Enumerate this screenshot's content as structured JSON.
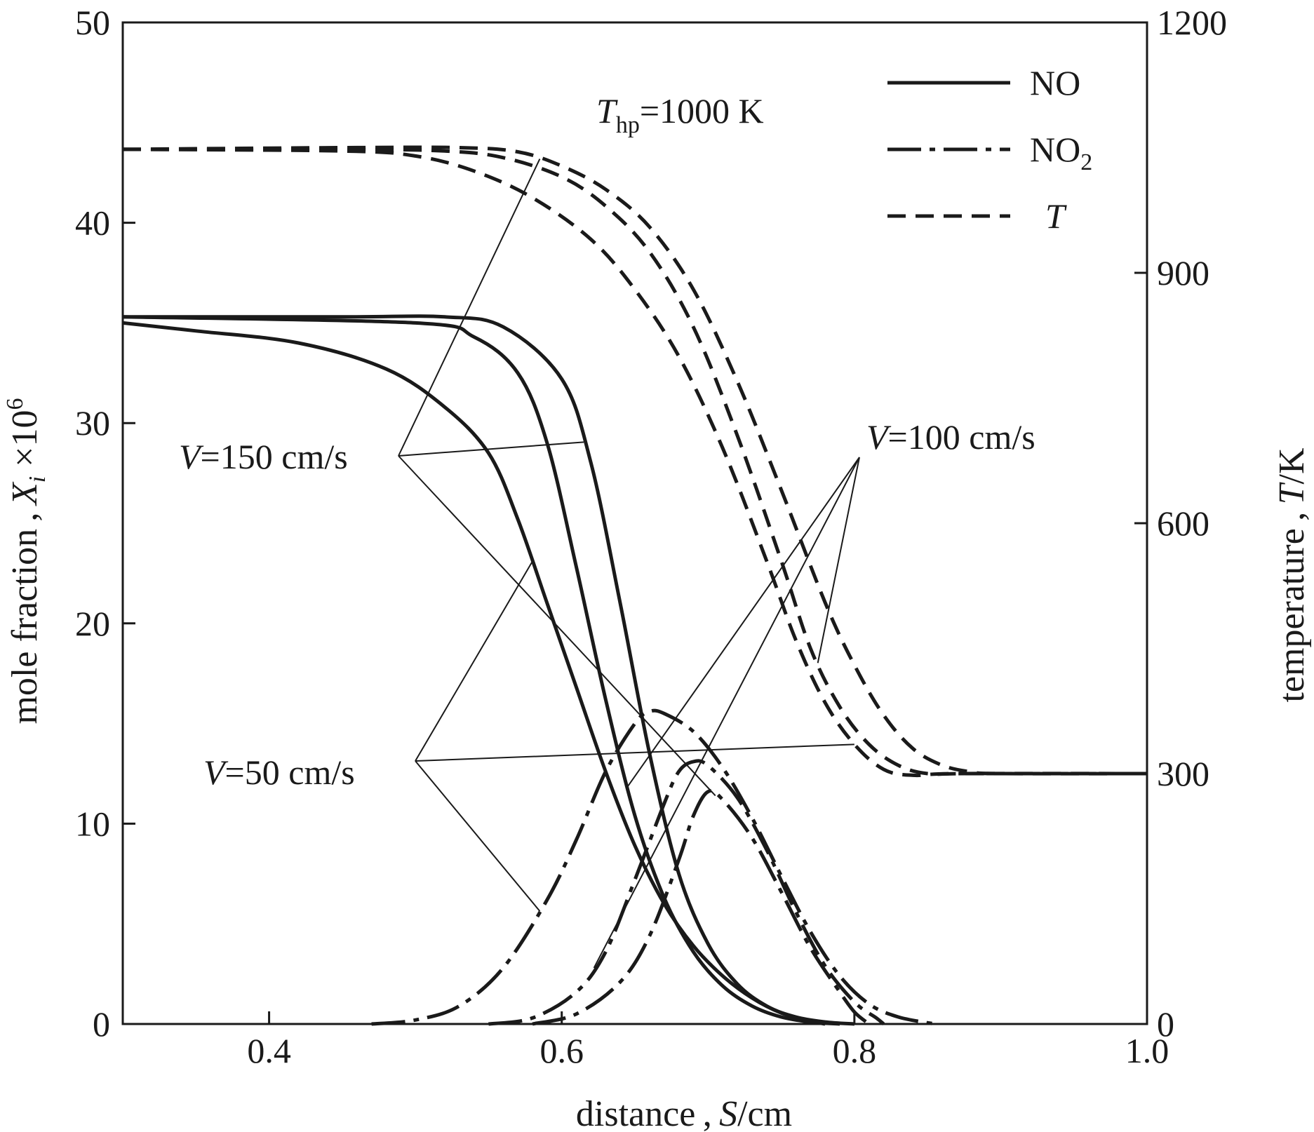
{
  "chart_data": {
    "type": "line",
    "x_axis": {
      "label_prefix": "distance , ",
      "label_var": "S",
      "label_unit": "/cm",
      "range": [
        0.3,
        1.0
      ],
      "ticks": [
        0.4,
        0.6,
        0.8,
        1.0
      ],
      "tick_labels": [
        "0.4",
        "0.6",
        "0.8",
        "1.0"
      ]
    },
    "y_left": {
      "label_prefix": "mole fraction , ",
      "label_var": "X",
      "label_sub": "i",
      "label_suffix": " ×10",
      "label_sup": "6",
      "range": [
        0,
        50
      ],
      "ticks": [
        0,
        10,
        20,
        30,
        40,
        50
      ],
      "tick_labels": [
        "0",
        "10",
        "20",
        "30",
        "40",
        "50"
      ]
    },
    "y_right": {
      "label_prefix": "temperature , ",
      "label_var": "T",
      "label_unit": "/K",
      "range": [
        0,
        1200
      ],
      "ticks": [
        0,
        300,
        600,
        900,
        1200
      ],
      "tick_labels": [
        "0",
        "300",
        "600",
        "900",
        "1200"
      ]
    },
    "legend": {
      "placement": "top-right",
      "entries": [
        {
          "label": "NO",
          "style": "solid"
        },
        {
          "label": "NO",
          "sub": "2",
          "style": "dashdot"
        },
        {
          "label": "T",
          "italic": true,
          "style": "dashed"
        }
      ]
    },
    "parameter_label": {
      "var": "T",
      "sub": "hp",
      "value": "=1000 K"
    },
    "annotations": [
      {
        "var": "V",
        "text": "=150 cm/s"
      },
      {
        "var": "V",
        "text": "=100 cm/s"
      },
      {
        "var": "V",
        "text": "=50 cm/s"
      }
    ],
    "series": [
      {
        "species": "NO",
        "velocity": "V=150 cm/s",
        "style": "solid",
        "axis": "left",
        "points": [
          [
            0.3,
            35.3
          ],
          [
            0.45,
            35.3
          ],
          [
            0.52,
            35.3
          ],
          [
            0.56,
            34.8
          ],
          [
            0.6,
            32.2
          ],
          [
            0.62,
            28.0
          ],
          [
            0.64,
            21.0
          ],
          [
            0.66,
            13.5
          ],
          [
            0.68,
            7.5
          ],
          [
            0.7,
            4.0
          ],
          [
            0.72,
            2.0
          ],
          [
            0.74,
            0.9
          ],
          [
            0.76,
            0.35
          ],
          [
            0.78,
            0.1
          ],
          [
            0.8,
            0.0
          ]
        ]
      },
      {
        "species": "NO",
        "velocity": "V=100 cm/s",
        "style": "solid",
        "axis": "left",
        "points": [
          [
            0.3,
            35.3
          ],
          [
            0.5,
            35.0
          ],
          [
            0.54,
            34.3
          ],
          [
            0.57,
            32.5
          ],
          [
            0.59,
            29.0
          ],
          [
            0.61,
            22.8
          ],
          [
            0.63,
            16.2
          ],
          [
            0.65,
            10.4
          ],
          [
            0.67,
            6.3
          ],
          [
            0.69,
            3.6
          ],
          [
            0.71,
            1.9
          ],
          [
            0.73,
            0.9
          ],
          [
            0.75,
            0.35
          ],
          [
            0.77,
            0.1
          ],
          [
            0.79,
            0.0
          ]
        ]
      },
      {
        "species": "NO",
        "velocity": "V=50 cm/s",
        "style": "solid",
        "axis": "left",
        "points": [
          [
            0.3,
            35.0
          ],
          [
            0.35,
            34.6
          ],
          [
            0.42,
            34.0
          ],
          [
            0.48,
            32.7
          ],
          [
            0.52,
            30.8
          ],
          [
            0.55,
            28.5
          ],
          [
            0.57,
            25.2
          ],
          [
            0.59,
            21.0
          ],
          [
            0.61,
            16.8
          ],
          [
            0.63,
            12.6
          ],
          [
            0.65,
            8.9
          ],
          [
            0.67,
            6.0
          ],
          [
            0.69,
            3.9
          ],
          [
            0.71,
            2.4
          ],
          [
            0.73,
            1.3
          ],
          [
            0.75,
            0.55
          ],
          [
            0.77,
            0.15
          ],
          [
            0.78,
            0.0
          ]
        ]
      },
      {
        "species": "NO2",
        "velocity": "V=50 cm/s",
        "style": "dashdot",
        "axis": "left",
        "points": [
          [
            0.47,
            0.0
          ],
          [
            0.5,
            0.2
          ],
          [
            0.53,
            0.9
          ],
          [
            0.56,
            2.8
          ],
          [
            0.59,
            6.2
          ],
          [
            0.61,
            9.2
          ],
          [
            0.63,
            12.6
          ],
          [
            0.65,
            15.0
          ],
          [
            0.66,
            15.6
          ],
          [
            0.67,
            15.5
          ],
          [
            0.69,
            14.6
          ],
          [
            0.71,
            12.8
          ],
          [
            0.73,
            10.3
          ],
          [
            0.75,
            7.4
          ],
          [
            0.77,
            4.6
          ],
          [
            0.79,
            2.4
          ],
          [
            0.81,
            1.0
          ],
          [
            0.83,
            0.35
          ],
          [
            0.855,
            0.0
          ]
        ]
      },
      {
        "species": "NO2",
        "velocity": "V=100 cm/s",
        "style": "dashdot",
        "axis": "left",
        "points": [
          [
            0.55,
            0.0
          ],
          [
            0.58,
            0.3
          ],
          [
            0.61,
            1.6
          ],
          [
            0.63,
            3.6
          ],
          [
            0.65,
            7.2
          ],
          [
            0.67,
            11.0
          ],
          [
            0.68,
            12.6
          ],
          [
            0.69,
            13.1
          ],
          [
            0.7,
            12.9
          ],
          [
            0.72,
            11.3
          ],
          [
            0.74,
            8.7
          ],
          [
            0.76,
            5.6
          ],
          [
            0.78,
            2.9
          ],
          [
            0.8,
            1.1
          ],
          [
            0.815,
            0.3
          ],
          [
            0.82,
            0.0
          ]
        ]
      },
      {
        "species": "NO2",
        "velocity": "V=150 cm/s",
        "style": "dashdot",
        "axis": "left",
        "points": [
          [
            0.58,
            0.0
          ],
          [
            0.61,
            0.5
          ],
          [
            0.64,
            2.1
          ],
          [
            0.66,
            4.4
          ],
          [
            0.68,
            8.2
          ],
          [
            0.69,
            10.4
          ],
          [
            0.7,
            11.6
          ],
          [
            0.71,
            11.2
          ],
          [
            0.73,
            9.3
          ],
          [
            0.75,
            6.6
          ],
          [
            0.77,
            3.8
          ],
          [
            0.79,
            1.6
          ],
          [
            0.8,
            0.6
          ],
          [
            0.81,
            0.0
          ]
        ]
      },
      {
        "species": "T",
        "velocity": "V=150 cm/s",
        "style": "dashed",
        "axis": "right",
        "points": [
          [
            0.3,
            1048
          ],
          [
            0.45,
            1050
          ],
          [
            0.53,
            1050
          ],
          [
            0.57,
            1045
          ],
          [
            0.6,
            1028
          ],
          [
            0.63,
            1000
          ],
          [
            0.66,
            955
          ],
          [
            0.69,
            880
          ],
          [
            0.72,
            770
          ],
          [
            0.75,
            640
          ],
          [
            0.78,
            505
          ],
          [
            0.8,
            430
          ],
          [
            0.82,
            370
          ],
          [
            0.84,
            330
          ],
          [
            0.86,
            310
          ],
          [
            0.88,
            302
          ],
          [
            0.9,
            300
          ],
          [
            1.0,
            300
          ]
        ]
      },
      {
        "species": "T",
        "velocity": "V=100 cm/s",
        "style": "dashed",
        "axis": "right",
        "points": [
          [
            0.3,
            1048
          ],
          [
            0.45,
            1048
          ],
          [
            0.52,
            1046
          ],
          [
            0.56,
            1038
          ],
          [
            0.6,
            1015
          ],
          [
            0.63,
            980
          ],
          [
            0.66,
            925
          ],
          [
            0.69,
            835
          ],
          [
            0.72,
            705
          ],
          [
            0.75,
            555
          ],
          [
            0.77,
            450
          ],
          [
            0.79,
            380
          ],
          [
            0.81,
            335
          ],
          [
            0.83,
            310
          ],
          [
            0.85,
            300
          ],
          [
            0.88,
            300
          ],
          [
            1.0,
            300
          ]
        ]
      },
      {
        "species": "T",
        "velocity": "V=50 cm/s",
        "style": "dashed",
        "axis": "right",
        "points": [
          [
            0.3,
            1048
          ],
          [
            0.45,
            1046
          ],
          [
            0.5,
            1040
          ],
          [
            0.54,
            1022
          ],
          [
            0.58,
            990
          ],
          [
            0.62,
            940
          ],
          [
            0.65,
            880
          ],
          [
            0.68,
            800
          ],
          [
            0.71,
            690
          ],
          [
            0.74,
            555
          ],
          [
            0.76,
            460
          ],
          [
            0.78,
            385
          ],
          [
            0.8,
            335
          ],
          [
            0.82,
            305
          ],
          [
            0.84,
            298
          ],
          [
            0.87,
            300
          ],
          [
            1.0,
            300
          ]
        ]
      }
    ]
  }
}
